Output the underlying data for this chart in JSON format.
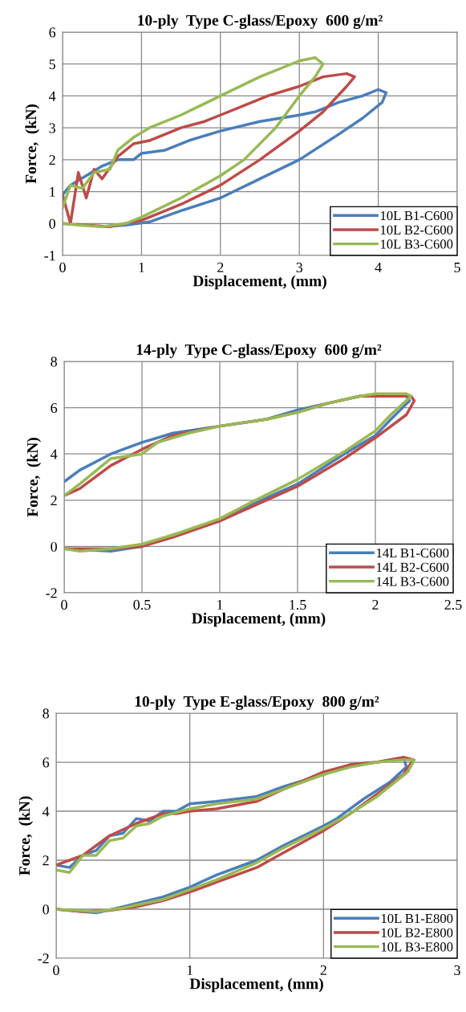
{
  "chart_data": [
    {
      "type": "line",
      "title": "10-ply  Type C-glass/Epoxy  600 g/m²",
      "xlabel": "Displacement, (mm)",
      "ylabel": "Force,  (kN)",
      "xlim": [
        0,
        5
      ],
      "ylim": [
        -1,
        6
      ],
      "xticks": [
        0,
        1,
        2,
        3,
        4,
        5
      ],
      "yticks": [
        -1,
        0,
        1,
        2,
        3,
        4,
        5,
        6
      ],
      "grid": true,
      "legend": "bottom right",
      "series": [
        {
          "name": "10L B1-C600",
          "color": "#4a7ebb",
          "x": [
            0,
            0.1,
            0.3,
            0.5,
            0.7,
            0.9,
            1,
            1.3,
            1.6,
            2,
            2.5,
            3,
            3.2,
            3.5,
            3.8,
            4.0,
            4.1,
            4.05,
            3.8,
            3.5,
            3,
            2.5,
            2,
            1.5,
            1.1,
            0.8,
            0.5
          ],
          "values": [
            0.9,
            1.2,
            1.5,
            1.8,
            2.0,
            2.0,
            2.2,
            2.3,
            2.6,
            2.9,
            3.2,
            3.4,
            3.5,
            3.8,
            4.0,
            4.2,
            4.1,
            3.8,
            3.3,
            2.8,
            2.0,
            1.4,
            0.8,
            0.4,
            0.05,
            -0.05,
            -0.1
          ]
        },
        {
          "name": "10L B2-C600",
          "color": "#be4b48",
          "x": [
            0,
            0.1,
            0.2,
            0.3,
            0.4,
            0.5,
            0.7,
            0.9,
            1.1,
            1.3,
            1.5,
            1.8,
            2,
            2.3,
            2.6,
            3,
            3.3,
            3.6,
            3.7,
            3.6,
            3.3,
            3,
            2.5,
            2,
            1.5,
            1,
            0.6,
            0.3,
            0
          ],
          "values": [
            0.9,
            0,
            1.6,
            0.8,
            1.7,
            1.4,
            2.1,
            2.5,
            2.6,
            2.8,
            3.0,
            3.2,
            3.4,
            3.7,
            4.0,
            4.3,
            4.6,
            4.7,
            4.6,
            4.3,
            3.5,
            2.9,
            2.0,
            1.2,
            0.6,
            0.1,
            -0.1,
            -0.05,
            0
          ]
        },
        {
          "name": "10L B3-C600",
          "color": "#98b954",
          "x": [
            0,
            0.1,
            0.25,
            0.4,
            0.6,
            0.7,
            0.9,
            1.1,
            1.5,
            2,
            2.5,
            3,
            3.2,
            3.3,
            3.2,
            3.0,
            2.7,
            2.3,
            2.0,
            1.5,
            1.0,
            0.8,
            0.5,
            0.2,
            0
          ],
          "values": [
            0.5,
            1.2,
            1.1,
            1.6,
            1.7,
            2.3,
            2.7,
            3.0,
            3.4,
            4.0,
            4.6,
            5.1,
            5.2,
            5.0,
            4.6,
            4.0,
            3.0,
            2.0,
            1.5,
            0.8,
            0.2,
            0,
            -0.1,
            -0.05,
            0
          ]
        }
      ]
    },
    {
      "type": "line",
      "title": "14-ply  Type C-glass/Epoxy  600 g/m²",
      "xlabel": "Displacement, (mm)",
      "ylabel": "Force,  (kN)",
      "xlim": [
        0,
        2.5
      ],
      "ylim": [
        -2,
        8
      ],
      "xticks": [
        0,
        0.5,
        1,
        1.5,
        2,
        2.5
      ],
      "yticks": [
        -2,
        0,
        2,
        4,
        6,
        8
      ],
      "grid": true,
      "legend": "bottom right",
      "series": [
        {
          "name": "14L B1-C600",
          "color": "#4a7ebb",
          "x": [
            0,
            0.1,
            0.3,
            0.5,
            0.7,
            1,
            1.3,
            1.5,
            1.7,
            1.9,
            2.1,
            2.2,
            2.22,
            2.1,
            2.0,
            1.8,
            1.5,
            1.2,
            1.0,
            0.7,
            0.5,
            0.3,
            0
          ],
          "values": [
            2.8,
            3.3,
            4.0,
            4.5,
            4.9,
            5.2,
            5.5,
            5.9,
            6.2,
            6.5,
            6.5,
            6.5,
            6.3,
            5.5,
            4.8,
            4.0,
            2.7,
            1.8,
            1.1,
            0.5,
            0,
            -0.2,
            -0.1
          ]
        },
        {
          "name": "14L B2-C600",
          "color": "#be4b48",
          "x": [
            0,
            0.1,
            0.3,
            0.5,
            0.7,
            1,
            1.3,
            1.5,
            1.7,
            1.9,
            2.1,
            2.23,
            2.25,
            2.2,
            2.0,
            1.8,
            1.5,
            1.2,
            1.0,
            0.7,
            0.5,
            0.3,
            0
          ],
          "values": [
            2.2,
            2.5,
            3.5,
            4.2,
            4.8,
            5.2,
            5.5,
            5.8,
            6.2,
            6.5,
            6.5,
            6.5,
            6.3,
            5.7,
            4.7,
            3.8,
            2.6,
            1.7,
            1.1,
            0.4,
            0,
            -0.1,
            -0.1
          ]
        },
        {
          "name": "14L B3-C600",
          "color": "#98b954",
          "x": [
            0,
            0.1,
            0.3,
            0.5,
            0.6,
            0.8,
            1,
            1.3,
            1.5,
            1.7,
            1.9,
            2.0,
            2.2,
            2.23,
            2.1,
            2.0,
            1.8,
            1.5,
            1.2,
            1.0,
            0.7,
            0.5,
            0.3,
            0.1,
            0
          ],
          "values": [
            2.2,
            2.7,
            3.8,
            4.0,
            4.5,
            4.9,
            5.2,
            5.5,
            5.8,
            6.2,
            6.5,
            6.6,
            6.6,
            6.5,
            5.7,
            5.0,
            4.1,
            2.9,
            1.9,
            1.2,
            0.5,
            0.1,
            -0.1,
            -0.2,
            -0.1
          ]
        }
      ]
    },
    {
      "type": "line",
      "title": "10-ply  Type E-glass/Epoxy  800 g/m²",
      "xlabel": "Displacement, (mm)",
      "ylabel": "Force,  (kN)",
      "xlim": [
        0,
        3
      ],
      "ylim": [
        -2,
        8
      ],
      "xticks": [
        0,
        1,
        2,
        3
      ],
      "yticks": [
        -2,
        0,
        2,
        4,
        6,
        8
      ],
      "grid": true,
      "legend": "bottom right",
      "series": [
        {
          "name": "10L B1-E800",
          "color": "#4a7ebb",
          "x": [
            0,
            0.1,
            0.2,
            0.3,
            0.4,
            0.5,
            0.6,
            0.7,
            0.8,
            0.9,
            1.0,
            1.2,
            1.5,
            1.7,
            2.0,
            2.2,
            2.4,
            2.6,
            2.62,
            2.5,
            2.3,
            2.1,
            2,
            1.7,
            1.5,
            1.2,
            1.0,
            0.8,
            0.5,
            0.3,
            0
          ],
          "values": [
            1.8,
            1.7,
            2.2,
            2.4,
            3.0,
            3.1,
            3.7,
            3.6,
            4.0,
            4.0,
            4.3,
            4.4,
            4.6,
            5.0,
            5.5,
            5.9,
            6.0,
            6.2,
            5.8,
            5.2,
            4.5,
            3.7,
            3.4,
            2.6,
            2.0,
            1.4,
            0.9,
            0.5,
            0.1,
            -0.15,
            0
          ]
        },
        {
          "name": "10L B2-E800",
          "color": "#be4b48",
          "x": [
            0,
            0.2,
            0.4,
            0.6,
            0.8,
            0.9,
            1.0,
            1.2,
            1.5,
            1.7,
            2,
            2.2,
            2.4,
            2.6,
            2.67,
            2.6,
            2.4,
            2.2,
            2.0,
            1.7,
            1.5,
            1.2,
            1.0,
            0.8,
            0.6,
            0.4,
            0.2,
            0
          ],
          "values": [
            1.8,
            2.2,
            3.0,
            3.5,
            3.9,
            3.9,
            4.0,
            4.1,
            4.4,
            4.9,
            5.6,
            5.9,
            6.0,
            6.2,
            6.1,
            5.5,
            4.7,
            3.9,
            3.2,
            2.3,
            1.7,
            1.1,
            0.7,
            0.35,
            0.1,
            -0.05,
            -0.1,
            0
          ]
        },
        {
          "name": "10L B3-E800",
          "color": "#98b954",
          "x": [
            0,
            0.1,
            0.2,
            0.3,
            0.4,
            0.5,
            0.6,
            0.7,
            0.8,
            1.0,
            1.2,
            1.5,
            1.7,
            2,
            2.2,
            2.4,
            2.6,
            2.68,
            2.63,
            2.4,
            2.2,
            2.0,
            1.7,
            1.5,
            1.2,
            1.0,
            0.8,
            0.5,
            0.3,
            0
          ],
          "values": [
            1.6,
            1.5,
            2.2,
            2.2,
            2.8,
            2.9,
            3.4,
            3.5,
            3.8,
            4.1,
            4.3,
            4.5,
            4.9,
            5.5,
            5.8,
            6.0,
            6.1,
            6.1,
            5.6,
            4.6,
            3.9,
            3.3,
            2.5,
            1.9,
            1.2,
            0.8,
            0.4,
            0.05,
            -0.1,
            0
          ]
        }
      ]
    }
  ]
}
